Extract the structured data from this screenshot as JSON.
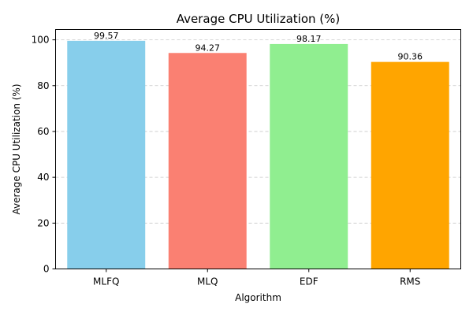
{
  "chart_data": {
    "type": "bar",
    "title": "Average CPU Utilization (%)",
    "xlabel": "Algorithm",
    "ylabel": "Average CPU Utilization (%)",
    "categories": [
      "MLFQ",
      "MLQ",
      "EDF",
      "RMS"
    ],
    "values": [
      99.57,
      94.27,
      98.17,
      90.36
    ],
    "value_labels": [
      "99.57",
      "94.27",
      "98.17",
      "90.36"
    ],
    "colors": [
      "#87ceeb",
      "#fa8072",
      "#90ee90",
      "#ffa500"
    ],
    "ylim": [
      0,
      104.5
    ],
    "yticks": [
      0,
      20,
      40,
      60,
      80,
      100
    ],
    "ytick_labels": [
      "0",
      "20",
      "40",
      "60",
      "80",
      "100"
    ],
    "grid": "y-dashed",
    "legend": "none"
  }
}
